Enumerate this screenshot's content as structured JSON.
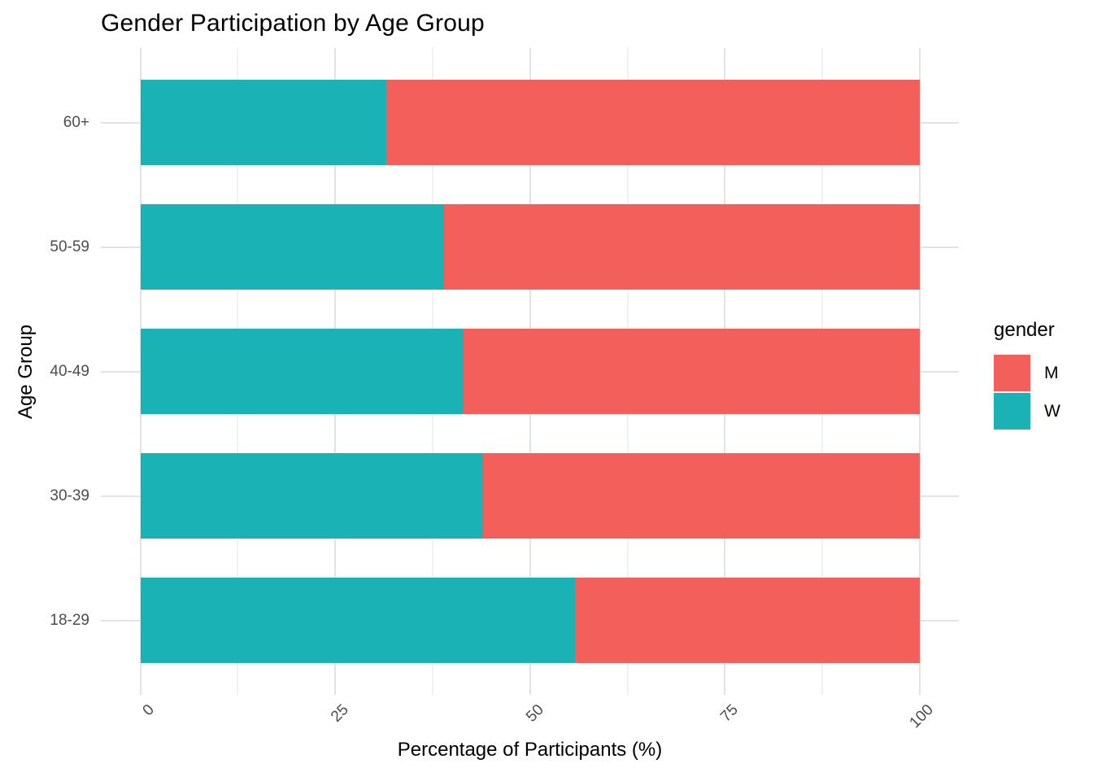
{
  "title": "Gender Participation by Age Group",
  "x_axis": {
    "title": "Percentage of Participants (%)",
    "tick_labels": [
      "0",
      "25",
      "50",
      "75",
      "100"
    ]
  },
  "y_axis": {
    "title": "Age Group",
    "tick_labels": [
      "60+",
      "50-59",
      "40-49",
      "30-39",
      "18-29"
    ]
  },
  "legend": {
    "title": "gender",
    "items": [
      {
        "label": "M",
        "color": "#f35f5a"
      },
      {
        "label": "W",
        "color": "#1ab2b5"
      }
    ]
  },
  "chart_data": {
    "type": "bar",
    "orientation": "horizontal",
    "stacked": true,
    "title": "Gender Participation by Age Group",
    "xlabel": "Percentage of Participants (%)",
    "ylabel": "Age Group",
    "categories": [
      "60+",
      "50-59",
      "40-49",
      "30-39",
      "18-29"
    ],
    "series": [
      {
        "name": "W",
        "color": "#1ab2b5",
        "values": [
          31.6,
          39.0,
          41.5,
          44.0,
          55.8
        ]
      },
      {
        "name": "M",
        "color": "#f35f5a",
        "values": [
          68.4,
          61.0,
          58.5,
          56.0,
          44.2
        ]
      }
    ],
    "xlim": [
      0,
      100
    ],
    "x_major_ticks": [
      0,
      25,
      50,
      75,
      100
    ],
    "x_minor_ticks": [
      12.5,
      37.5,
      62.5,
      87.5
    ],
    "grid": true,
    "panel_background": "#ffffff",
    "grid_color_major": "#e3e3e3",
    "grid_color_minor": "#f1f1f1",
    "legend_position": "right"
  }
}
